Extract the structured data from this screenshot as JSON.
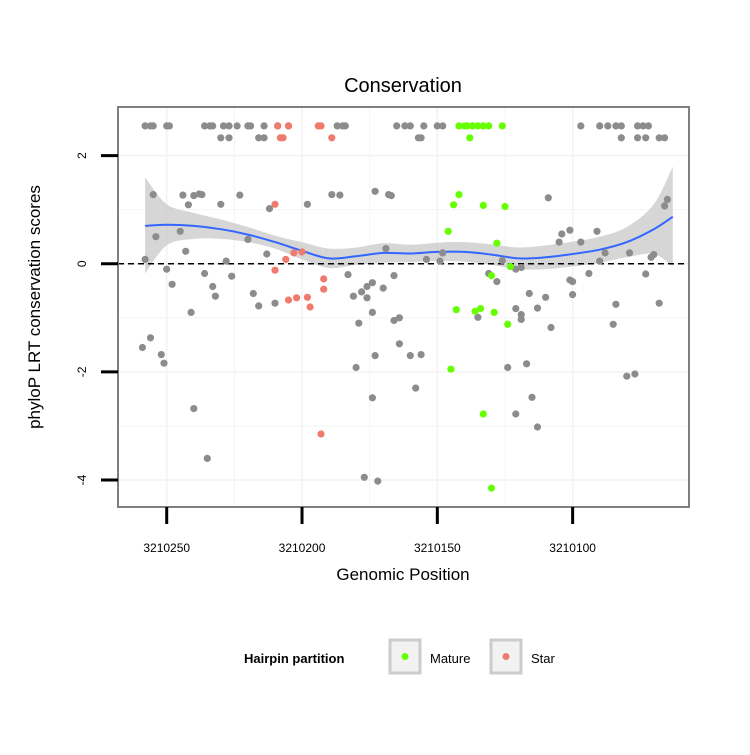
{
  "chart_data": {
    "type": "scatter",
    "title": "Conservation",
    "xlabel": "Genomic Position",
    "ylabel": "phyloP LRT conservation scores",
    "xlim": [
      3210268,
      3210057
    ],
    "ylim": [
      -4.5,
      2.9
    ],
    "x_reversed": true,
    "xticks": [
      3210250,
      3210200,
      3210150,
      3210100
    ],
    "xtick_labels": [
      "3210250",
      "3210200",
      "3210150",
      "3210100"
    ],
    "yticks": [
      -4,
      -2,
      0,
      2
    ],
    "ytick_labels": [
      "-4",
      "-2",
      "0",
      "2"
    ],
    "reference_line": {
      "y": 0,
      "style": "dashed"
    },
    "legend": {
      "title": "Hairpin partition",
      "position": "bottom",
      "entries": [
        {
          "label": "Mature",
          "color": "#66ff00"
        },
        {
          "label": "Star",
          "color": "#ee7b6e"
        }
      ]
    },
    "colors": {
      "other": "#8c8c8c",
      "Mature": "#66ff00",
      "Star": "#ee7b6e",
      "smooth": "#3366ff",
      "ribbon": "#c8c8c8",
      "panel_border": "#7f7f7f",
      "grid": "#f2f2f2"
    },
    "smooth": {
      "x": [
        3210258,
        3210250,
        3210240,
        3210230,
        3210220,
        3210210,
        3210200,
        3210190,
        3210180,
        3210170,
        3210160,
        3210150,
        3210140,
        3210130,
        3210120,
        3210110,
        3210100,
        3210090,
        3210080,
        3210070,
        3210063
      ],
      "y": [
        0.7,
        0.72,
        0.7,
        0.64,
        0.54,
        0.4,
        0.24,
        0.1,
        0.14,
        0.2,
        0.19,
        0.22,
        0.22,
        0.17,
        0.1,
        0.12,
        0.18,
        0.26,
        0.4,
        0.64,
        0.87
      ],
      "lower": [
        -0.18,
        0.34,
        0.46,
        0.46,
        0.4,
        0.28,
        0.08,
        -0.08,
        -0.02,
        0.02,
        0.03,
        0.05,
        0.04,
        -0.02,
        -0.1,
        -0.1,
        -0.05,
        0.02,
        0.12,
        0.18,
        -0.05
      ],
      "upper": [
        1.6,
        1.1,
        0.94,
        0.82,
        0.68,
        0.52,
        0.4,
        0.28,
        0.3,
        0.38,
        0.35,
        0.39,
        0.4,
        0.36,
        0.3,
        0.34,
        0.41,
        0.5,
        0.68,
        1.1,
        1.8
      ]
    },
    "series": [
      {
        "name": "Other",
        "points": [
          [
            3210258,
            2.55
          ],
          [
            3210256,
            2.55
          ],
          [
            3210255,
            2.55
          ],
          [
            3210250,
            2.55
          ],
          [
            3210249,
            2.55
          ],
          [
            3210236,
            2.55
          ],
          [
            3210234,
            2.55
          ],
          [
            3210233,
            2.55
          ],
          [
            3210229,
            2.55
          ],
          [
            3210227,
            2.55
          ],
          [
            3210224,
            2.55
          ],
          [
            3210220,
            2.55
          ],
          [
            3210219,
            2.55
          ],
          [
            3210214,
            2.55
          ],
          [
            3210209,
            2.55
          ],
          [
            3210205,
            2.55
          ],
          [
            3210187,
            2.55
          ],
          [
            3210185,
            2.55
          ],
          [
            3210184,
            2.55
          ],
          [
            3210165,
            2.55
          ],
          [
            3210162,
            2.55
          ],
          [
            3210160,
            2.55
          ],
          [
            3210155,
            2.55
          ],
          [
            3210150,
            2.55
          ],
          [
            3210148,
            2.55
          ],
          [
            3210097,
            2.55
          ],
          [
            3210090,
            2.55
          ],
          [
            3210087,
            2.55
          ],
          [
            3210084,
            2.55
          ],
          [
            3210082,
            2.55
          ],
          [
            3210076,
            2.55
          ],
          [
            3210074,
            2.55
          ],
          [
            3210072,
            2.55
          ],
          [
            3210230,
            2.33
          ],
          [
            3210227,
            2.33
          ],
          [
            3210216,
            2.33
          ],
          [
            3210214,
            2.33
          ],
          [
            3210157,
            2.33
          ],
          [
            3210156,
            2.33
          ],
          [
            3210082,
            2.33
          ],
          [
            3210076,
            2.33
          ],
          [
            3210073,
            2.33
          ],
          [
            3210068,
            2.33
          ],
          [
            3210066,
            2.33
          ],
          [
            3210258,
            0.08
          ],
          [
            3210254,
            0.5
          ],
          [
            3210250,
            -0.1
          ],
          [
            3210248,
            -0.38
          ],
          [
            3210245,
            0.6
          ],
          [
            3210255,
            1.28
          ],
          [
            3210244,
            1.27
          ],
          [
            3210242,
            1.09
          ],
          [
            3210240,
            1.26
          ],
          [
            3210238,
            1.29
          ],
          [
            3210237,
            1.28
          ],
          [
            3210241,
            -0.9
          ],
          [
            3210243,
            0.23
          ],
          [
            3210236,
            -0.18
          ],
          [
            3210233,
            -0.42
          ],
          [
            3210232,
            -0.6
          ],
          [
            3210230,
            1.1
          ],
          [
            3210228,
            0.05
          ],
          [
            3210226,
            -0.23
          ],
          [
            3210223,
            1.27
          ],
          [
            3210220,
            0.45
          ],
          [
            3210218,
            -0.55
          ],
          [
            3210216,
            -0.78
          ],
          [
            3210213,
            0.18
          ],
          [
            3210212,
            1.02
          ],
          [
            3210210,
            -0.73
          ],
          [
            3210198,
            1.1
          ],
          [
            3210189,
            1.28
          ],
          [
            3210186,
            1.27
          ],
          [
            3210173,
            1.34
          ],
          [
            3210168,
            1.28
          ],
          [
            3210167,
            1.26
          ],
          [
            3210178,
            -0.52
          ],
          [
            3210176,
            -0.42
          ],
          [
            3210174,
            -0.35
          ],
          [
            3210181,
            -0.6
          ],
          [
            3210179,
            -1.1
          ],
          [
            3210183,
            -0.2
          ],
          [
            3210176,
            -0.63
          ],
          [
            3210170,
            -0.45
          ],
          [
            3210169,
            0.28
          ],
          [
            3210166,
            -1.05
          ],
          [
            3210164,
            -1.0
          ],
          [
            3210174,
            -0.9
          ],
          [
            3210164,
            -1.48
          ],
          [
            3210160,
            -1.7
          ],
          [
            3210156,
            -1.68
          ],
          [
            3210158,
            -2.3
          ],
          [
            3210154,
            0.08
          ],
          [
            3210149,
            0.05
          ],
          [
            3210166,
            -0.22
          ],
          [
            3210148,
            0.2
          ],
          [
            3210180,
            -1.92
          ],
          [
            3210173,
            -1.7
          ],
          [
            3210174,
            -2.48
          ],
          [
            3210177,
            -3.95
          ],
          [
            3210172,
            -4.02
          ],
          [
            3210123,
            -0.05
          ],
          [
            3210121,
            -0.1
          ],
          [
            3210119,
            -0.07
          ],
          [
            3210121,
            -0.83
          ],
          [
            3210119,
            -0.94
          ],
          [
            3210116,
            -0.55
          ],
          [
            3210119,
            -1.03
          ],
          [
            3210113,
            -0.82
          ],
          [
            3210110,
            -0.62
          ],
          [
            3210108,
            -1.18
          ],
          [
            3210109,
            1.22
          ],
          [
            3210104,
            0.55
          ],
          [
            3210105,
            0.4
          ],
          [
            3210101,
            -0.3
          ],
          [
            3210100,
            -0.33
          ],
          [
            3210100,
            -0.57
          ],
          [
            3210097,
            0.4
          ],
          [
            3210094,
            -0.18
          ],
          [
            3210090,
            0.05
          ],
          [
            3210091,
            0.6
          ],
          [
            3210088,
            0.2
          ],
          [
            3210085,
            -1.12
          ],
          [
            3210084,
            -0.75
          ],
          [
            3210080,
            -2.08
          ],
          [
            3210077,
            -2.04
          ],
          [
            3210073,
            -0.19
          ],
          [
            3210071,
            0.12
          ],
          [
            3210070,
            0.17
          ],
          [
            3210066,
            1.07
          ],
          [
            3210065,
            1.19
          ],
          [
            3210068,
            -0.73
          ],
          [
            3210124,
            -1.92
          ],
          [
            3210117,
            -1.85
          ],
          [
            3210115,
            -2.47
          ],
          [
            3210113,
            -3.02
          ],
          [
            3210121,
            -2.78
          ],
          [
            3210259,
            -1.55
          ],
          [
            3210256,
            -1.37
          ],
          [
            3210252,
            -1.68
          ],
          [
            3210251,
            -1.84
          ],
          [
            3210240,
            -2.68
          ],
          [
            3210235,
            -3.6
          ],
          [
            3210135,
            -0.99
          ],
          [
            3210131,
            -0.18
          ],
          [
            3210128,
            -0.33
          ],
          [
            3210126,
            0.06
          ],
          [
            3210101,
            0.62
          ],
          [
            3210079,
            0.2
          ]
        ]
      },
      {
        "name": "Mature",
        "points": [
          [
            3210142,
            2.55
          ],
          [
            3210140,
            2.55
          ],
          [
            3210139,
            2.55
          ],
          [
            3210137,
            2.55
          ],
          [
            3210135,
            2.55
          ],
          [
            3210133,
            2.55
          ],
          [
            3210131,
            2.55
          ],
          [
            3210126,
            2.55
          ],
          [
            3210138,
            2.33
          ],
          [
            3210142,
            1.28
          ],
          [
            3210144,
            1.09
          ],
          [
            3210133,
            1.08
          ],
          [
            3210125,
            1.06
          ],
          [
            3210146,
            0.6
          ],
          [
            3210128,
            0.38
          ],
          [
            3210123,
            -0.05
          ],
          [
            3210130,
            -0.22
          ],
          [
            3210143,
            -0.85
          ],
          [
            3210136,
            -0.88
          ],
          [
            3210134,
            -0.83
          ],
          [
            3210129,
            -0.9
          ],
          [
            3210124,
            -1.12
          ],
          [
            3210145,
            -1.95
          ],
          [
            3210133,
            -2.78
          ],
          [
            3210130,
            -4.15
          ]
        ]
      },
      {
        "name": "Star",
        "points": [
          [
            3210209,
            2.55
          ],
          [
            3210205,
            2.55
          ],
          [
            3210208,
            2.33
          ],
          [
            3210207,
            2.33
          ],
          [
            3210194,
            2.55
          ],
          [
            3210193,
            2.55
          ],
          [
            3210189,
            2.33
          ],
          [
            3210210,
            1.1
          ],
          [
            3210206,
            0.08
          ],
          [
            3210203,
            0.2
          ],
          [
            3210200,
            0.22
          ],
          [
            3210210,
            -0.12
          ],
          [
            3210205,
            -0.67
          ],
          [
            3210202,
            -0.63
          ],
          [
            3210198,
            -0.62
          ],
          [
            3210197,
            -0.8
          ],
          [
            3210192,
            -0.47
          ],
          [
            3210192,
            -0.28
          ],
          [
            3210193,
            -3.15
          ]
        ]
      }
    ]
  }
}
